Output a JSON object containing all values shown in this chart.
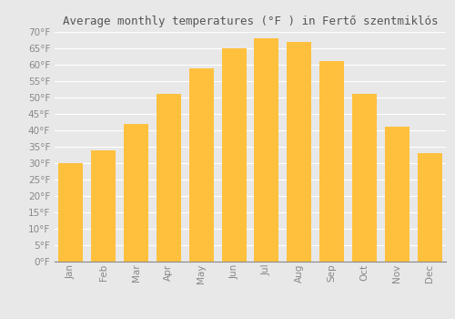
{
  "title": "Average monthly temperatures (°F ) in Fertő szentmiklós",
  "months": [
    "Jan",
    "Feb",
    "Mar",
    "Apr",
    "May",
    "Jun",
    "Jul",
    "Aug",
    "Sep",
    "Oct",
    "Nov",
    "Dec"
  ],
  "values": [
    30,
    34,
    42,
    51,
    59,
    65,
    68,
    67,
    61,
    51,
    41,
    33
  ],
  "bar_color_top": "#FFC03D",
  "bar_color_bottom": "#FFA000",
  "ylim": [
    0,
    70
  ],
  "yticks": [
    0,
    5,
    10,
    15,
    20,
    25,
    30,
    35,
    40,
    45,
    50,
    55,
    60,
    65,
    70
  ],
  "background_color": "#e8e8e8",
  "plot_bg_color": "#e8e8e8",
  "grid_color": "#ffffff",
  "title_fontsize": 9,
  "tick_fontsize": 7.5,
  "tick_color": "#888888",
  "bar_width": 0.75
}
